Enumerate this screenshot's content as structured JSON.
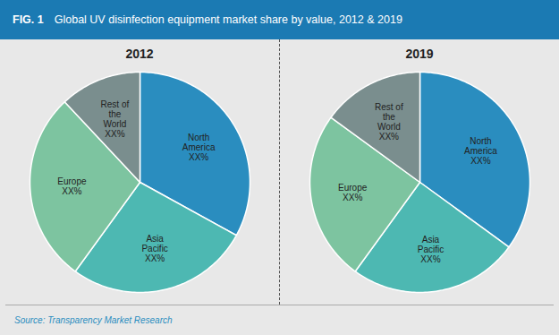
{
  "title": "FIG. 1",
  "subtitle": "Global UV disinfection equipment market share by value, 2012 & 2019",
  "annotations": [
    "Source: Transparency Market Research"
  ],
  "chart_data": [
    {
      "type": "pie",
      "title": "2012",
      "categories": [
        "North\nAmerica\nXX%",
        "Asia\nPacific\nXX%",
        "Europe\nXX%",
        "Rest of\nthe\nWorld\nXX%"
      ],
      "values": [
        33,
        27,
        28,
        12
      ],
      "colors": [
        "#2a8dbf",
        "#4db8b2",
        "#7dc4a0",
        "#7a8e8e"
      ]
    },
    {
      "type": "pie",
      "title": "2019",
      "categories": [
        "North\nAmerica\nXX%",
        "Asia\nPacific\nXX%",
        "Europe\nXX%",
        "Rest of\nthe\nWorld\nXX%"
      ],
      "values": [
        35,
        25,
        25,
        15
      ],
      "colors": [
        "#2a8dbf",
        "#4db8b2",
        "#7dc4a0",
        "#7a8e8e"
      ]
    }
  ]
}
